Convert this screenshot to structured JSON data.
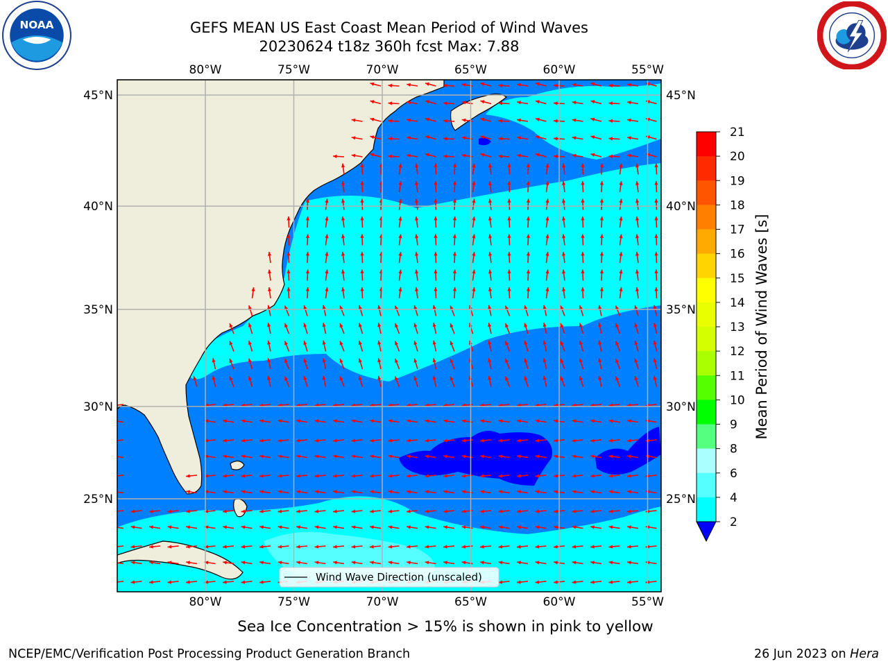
{
  "title_line1": "GEFS MEAN US East Coast Mean Period of Wind Waves",
  "title_line2": "20230624 t18z 360h fcst   Max: 7.88",
  "subtitle": "Sea Ice Concentration > 15% is shown in pink to yellow",
  "footer_left": "NCEP/EMC/Verification Post Processing Product Generation Branch",
  "footer_right_prefix": "26 Jun 2023 on ",
  "footer_right_host": "Hera",
  "legend_label": "Wind Wave Direction (unscaled)",
  "logos": [
    "noaa-logo",
    "nws-logo"
  ],
  "map": {
    "lon_ticks": [
      "80°W",
      "75°W",
      "70°W",
      "65°W",
      "60°W",
      "55°W"
    ],
    "lat_ticks": [
      "45°N",
      "40°N",
      "35°N",
      "30°N",
      "25°N"
    ],
    "lon_range": [
      -85,
      -54.2
    ],
    "lat_range": [
      20.5,
      46.5
    ],
    "land_color": "#efeedc",
    "vector_color": "#ff0000"
  },
  "colorbar": {
    "label": "Mean Period of Wind Waves [s]",
    "ticks": [
      "21",
      "20",
      "19",
      "18",
      "17",
      "16",
      "15",
      "14",
      "13",
      "12",
      "11",
      "10",
      "9",
      "8",
      "6",
      "4",
      "2"
    ],
    "colors": [
      "#ff0000",
      "#ff2a00",
      "#ff5500",
      "#ff8000",
      "#ffaa00",
      "#ffd400",
      "#ffff00",
      "#e9ff00",
      "#d4ff00",
      "#aaff00",
      "#55ff00",
      "#00ff00",
      "#55ff80",
      "#aaffff",
      "#55ffff",
      "#00ffff",
      "#0080ff"
    ],
    "extend_color": "#0000ff"
  },
  "legend_colors": {
    "deep": "#0000ff",
    "mid": "#0080ff",
    "light": "#00ffff",
    "lighter": "#55ffff",
    "palest": "#aaffff"
  }
}
